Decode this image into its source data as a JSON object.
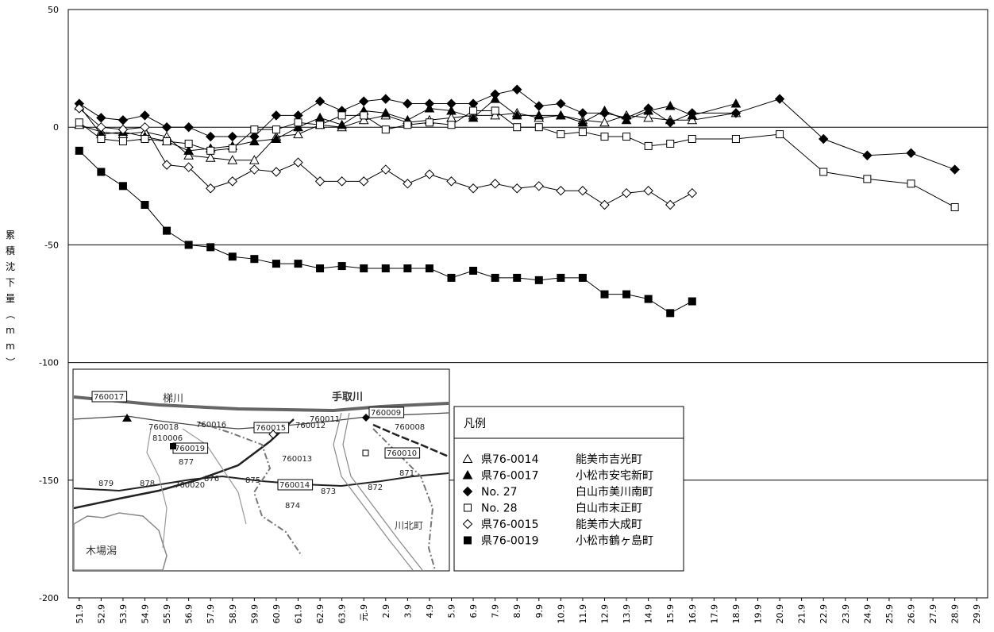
{
  "chart_data": {
    "type": "line",
    "ylabel": "累積沈下量（mm）",
    "ylim": [
      -200,
      50
    ],
    "yticks": [
      50,
      0,
      -50,
      -100,
      -150,
      -200
    ],
    "grid": "horizontal",
    "categories": [
      "51.9",
      "52.9",
      "53.9",
      "54.9",
      "55.9",
      "56.9",
      "57.9",
      "58.9",
      "59.9",
      "60.9",
      "61.9",
      "62.9",
      "63.9",
      "元.9",
      "2.9",
      "3.9",
      "4.9",
      "5.9",
      "6.9",
      "7.9",
      "8.9",
      "9.9",
      "10.9",
      "11.9",
      "12.9",
      "13.9",
      "14.9",
      "15.9",
      "16.9",
      "17.9",
      "18.9",
      "19.9",
      "20.9",
      "21.9",
      "22.9",
      "23.9",
      "24.9",
      "25.9",
      "26.9",
      "27.9",
      "28.9",
      "29.9"
    ],
    "legend_title": "凡例",
    "legend_position": "inside-lower-center",
    "series": [
      {
        "id": "s0014",
        "point": "県76-0014",
        "name": "能美市吉光町",
        "marker": "triangle",
        "fill": "open",
        "values": [
          1,
          -2,
          -3,
          -2,
          -4,
          -12,
          -13,
          -14,
          -14,
          -4,
          -3,
          1,
          0,
          3,
          5,
          2,
          3,
          4,
          5,
          5,
          6,
          4,
          5,
          3,
          2,
          5,
          4,
          3,
          3,
          null,
          6,
          null,
          null,
          null,
          null,
          null,
          null,
          null,
          null,
          null,
          null,
          null
        ]
      },
      {
        "id": "s0017",
        "point": "県76-0017",
        "name": "小松市安宅新町",
        "marker": "triangle",
        "fill": "solid",
        "values": [
          9,
          -3,
          -2,
          -4,
          -6,
          -10,
          -9,
          -8,
          -6,
          -5,
          0,
          4,
          1,
          7,
          6,
          3,
          8,
          7,
          4,
          12,
          5,
          5,
          5,
          2,
          7,
          3,
          7,
          9,
          5,
          null,
          10,
          null,
          null,
          null,
          null,
          null,
          null,
          null,
          null,
          null,
          null,
          null
        ]
      },
      {
        "id": "s27",
        "point": "No. 27",
        "name": "白山市美川南町",
        "marker": "diamond",
        "fill": "solid",
        "values": [
          10,
          4,
          3,
          5,
          0,
          0,
          -4,
          -4,
          -4,
          5,
          5,
          11,
          7,
          11,
          12,
          10,
          10,
          10,
          10,
          14,
          16,
          9,
          10,
          6,
          6,
          4,
          8,
          2,
          6,
          null,
          6,
          null,
          12,
          null,
          -5,
          null,
          -12,
          null,
          -11,
          null,
          -18,
          null
        ]
      },
      {
        "id": "s28",
        "point": "No. 28",
        "name": "白山市末正町",
        "marker": "square",
        "fill": "open",
        "values": [
          2,
          -5,
          -6,
          -5,
          -6,
          -7,
          -10,
          -9,
          -1,
          -1,
          2,
          1,
          5,
          5,
          -1,
          1,
          2,
          1,
          7,
          7,
          0,
          0,
          -3,
          -2,
          -4,
          -4,
          -8,
          -7,
          -5,
          null,
          -5,
          null,
          -3,
          null,
          -19,
          null,
          -22,
          null,
          -24,
          null,
          -34,
          null
        ]
      },
      {
        "id": "s0015",
        "point": "県76-0015",
        "name": "能美市大成町",
        "marker": "diamond",
        "fill": "open",
        "values": [
          8,
          0,
          -1,
          0,
          -16,
          -17,
          -26,
          -23,
          -18,
          -19,
          -15,
          -23,
          -23,
          -23,
          -18,
          -24,
          -20,
          -23,
          -26,
          -24,
          -26,
          -25,
          -27,
          -27,
          -33,
          -28,
          -27,
          -33,
          -28,
          null,
          null,
          null,
          null,
          null,
          null,
          null,
          null,
          null,
          null,
          null,
          null,
          null
        ]
      },
      {
        "id": "s0019",
        "point": "県76-0019",
        "name": "小松市鶴ヶ島町",
        "marker": "square",
        "fill": "solid",
        "values": [
          -10,
          -19,
          -25,
          -33,
          -44,
          -50,
          -51,
          -55,
          -56,
          -58,
          -58,
          -60,
          -59,
          -60,
          -60,
          -60,
          -60,
          -64,
          -61,
          -64,
          -64,
          -65,
          -64,
          -64,
          -71,
          -71,
          -73,
          -79,
          -74,
          null,
          null,
          null,
          null,
          null,
          null,
          null,
          null,
          null,
          null,
          null,
          null,
          null
        ]
      }
    ]
  },
  "inset_map": {
    "labels": {
      "river_left": "梯川",
      "river_right": "手取川",
      "lagoon": "木場潟",
      "town": "川北町"
    },
    "points": [
      "760017",
      "760018",
      "810006",
      "760019",
      "877",
      "879",
      "878",
      "760020",
      "876",
      "875",
      "760016",
      "760015",
      "760012",
      "760011",
      "760009",
      "760008",
      "760013",
      "760010",
      "760014",
      "874",
      "873",
      "872",
      "871"
    ]
  }
}
